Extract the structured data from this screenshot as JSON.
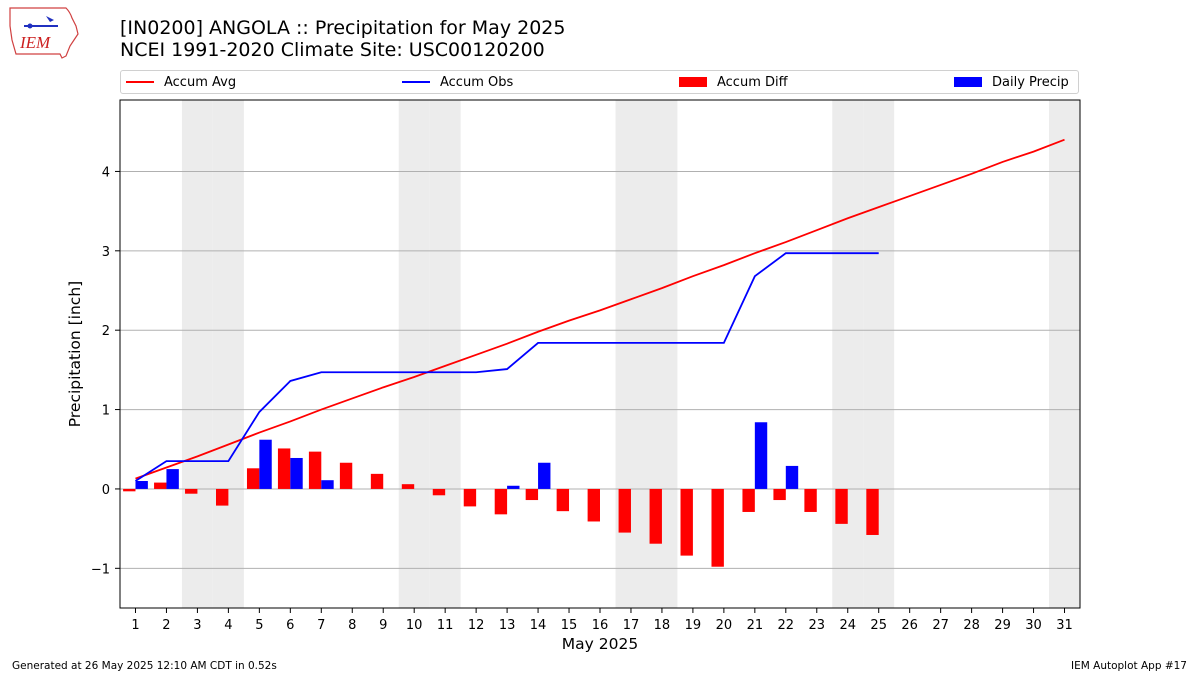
{
  "header": {
    "logo_text": "IEM",
    "title_line1": "[IN0200] ANGOLA :: Precipitation for May 2025",
    "title_line2": "NCEI 1991-2020 Climate Site: USC00120200"
  },
  "legend": {
    "items": [
      {
        "label": "Accum Avg",
        "kind": "line",
        "color": "#ff0000"
      },
      {
        "label": "Accum Obs",
        "kind": "line",
        "color": "#0000ff"
      },
      {
        "label": "Accum Diff",
        "kind": "bar",
        "color": "#ff0000"
      },
      {
        "label": "Daily Precip",
        "kind": "bar",
        "color": "#0000ff"
      }
    ]
  },
  "footer": {
    "generated": "Generated at 26 May 2025 12:10 AM CDT in 0.52s",
    "app": "IEM Autoplot App #17"
  },
  "colors": {
    "avg": "#ff0000",
    "obs": "#0000ff",
    "weekend_shade": "#ececec",
    "grid": "#b0b0b0"
  },
  "chart_data": {
    "type": "bar",
    "xlabel": "May 2025",
    "ylabel": "Precipitation [inch]",
    "xlim": [
      0.5,
      31.5
    ],
    "ylim": [
      -1.5,
      4.9
    ],
    "yticks": [
      -1,
      0,
      1,
      2,
      3,
      4
    ],
    "ytick_labels": [
      "−1",
      "0",
      "1",
      "2",
      "3",
      "4"
    ],
    "days": [
      1,
      2,
      3,
      4,
      5,
      6,
      7,
      8,
      9,
      10,
      11,
      12,
      13,
      14,
      15,
      16,
      17,
      18,
      19,
      20,
      21,
      22,
      23,
      24,
      25,
      26,
      27,
      28,
      29,
      30,
      31
    ],
    "weekend_days": [
      3,
      4,
      10,
      11,
      17,
      18,
      24,
      25,
      31
    ],
    "grid": "horizontal",
    "series": [
      {
        "name": "Accum Avg",
        "type": "line",
        "values": [
          0.13,
          0.27,
          0.41,
          0.56,
          0.71,
          0.85,
          1.0,
          1.14,
          1.28,
          1.41,
          1.55,
          1.69,
          1.83,
          1.98,
          2.12,
          2.25,
          2.39,
          2.53,
          2.68,
          2.82,
          2.97,
          3.11,
          3.26,
          3.41,
          3.55,
          3.69,
          3.83,
          3.97,
          4.12,
          4.25,
          4.4
        ]
      },
      {
        "name": "Accum Obs",
        "type": "line",
        "values": [
          0.1,
          0.35,
          0.35,
          0.35,
          0.97,
          1.36,
          1.47,
          1.47,
          1.47,
          1.47,
          1.47,
          1.47,
          1.51,
          1.84,
          1.84,
          1.84,
          1.84,
          1.84,
          1.84,
          1.84,
          2.68,
          2.97,
          2.97,
          2.97,
          2.97
        ]
      },
      {
        "name": "Accum Diff",
        "type": "bar",
        "values": [
          -0.03,
          0.08,
          -0.06,
          -0.21,
          0.26,
          0.51,
          0.47,
          0.33,
          0.19,
          0.06,
          -0.08,
          -0.22,
          -0.32,
          -0.14,
          -0.28,
          -0.41,
          -0.55,
          -0.69,
          -0.84,
          -0.98,
          -0.29,
          -0.14,
          -0.29,
          -0.44,
          -0.58
        ]
      },
      {
        "name": "Daily Precip",
        "type": "bar",
        "values": [
          0.1,
          0.25,
          0,
          0,
          0.62,
          0.39,
          0.11,
          0,
          0,
          0,
          0,
          0,
          0.04,
          0.33,
          0,
          0,
          0,
          0,
          0,
          0,
          0.84,
          0.29,
          0,
          0,
          0
        ]
      }
    ]
  }
}
